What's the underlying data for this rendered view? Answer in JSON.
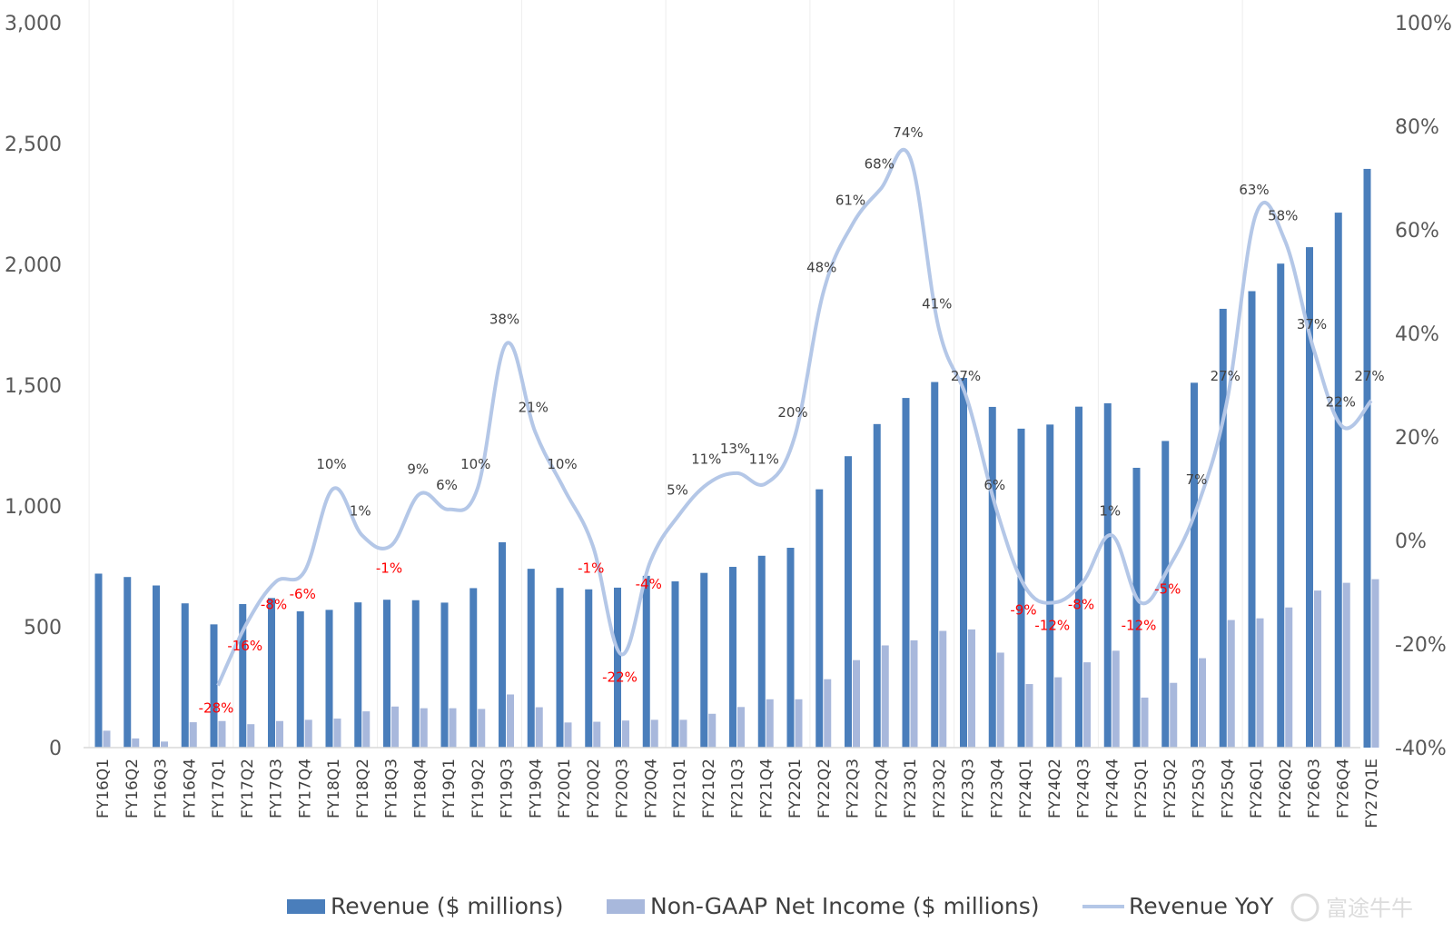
{
  "chart_data": {
    "type": "bar",
    "categories": [
      "FY16Q1",
      "FY16Q2",
      "FY16Q3",
      "FY16Q4",
      "FY17Q1",
      "FY17Q2",
      "FY17Q3",
      "FY17Q4",
      "FY18Q1",
      "FY18Q2",
      "FY18Q3",
      "FY18Q4",
      "FY19Q1",
      "FY19Q2",
      "FY19Q3",
      "FY19Q4",
      "FY20Q1",
      "FY20Q2",
      "FY20Q3",
      "FY20Q4",
      "FY21Q1",
      "FY21Q2",
      "FY21Q3",
      "FY21Q4",
      "FY22Q1",
      "FY22Q2",
      "FY22Q3",
      "FY22Q4",
      "FY23Q1",
      "FY23Q2",
      "FY23Q3",
      "FY23Q4",
      "FY24Q1",
      "FY24Q2",
      "FY24Q3",
      "FY24Q4",
      "FY25Q1",
      "FY25Q2",
      "FY25Q3",
      "FY25Q4",
      "FY26Q1",
      "FY26Q2",
      "FY26Q3",
      "FY26Q4",
      "FY27Q1E"
    ],
    "series": [
      {
        "name": "Revenue ($ millions)",
        "axis": "left",
        "kind": "bar",
        "color": "#4a7ebb",
        "values": [
          720,
          706,
          671,
          597,
          510,
          594,
          619,
          564,
          570,
          601,
          612,
          610,
          600,
          660,
          850,
          740,
          661,
          655,
          662,
          711,
          688,
          723,
          748,
          794,
          827,
          1069,
          1206,
          1339,
          1447,
          1513,
          1530,
          1410,
          1320,
          1337,
          1411,
          1425,
          1158,
          1269,
          1510,
          1816,
          1889,
          2003,
          2071,
          2214,
          2395
        ]
      },
      {
        "name": "Non-GAAP Net Income ($ millions)",
        "axis": "left",
        "kind": "bar",
        "color": "#a8b8dc",
        "values": [
          70,
          38,
          25,
          105,
          110,
          97,
          110,
          115,
          120,
          150,
          170,
          163,
          163,
          160,
          220,
          167,
          104,
          107,
          112,
          115,
          115,
          140,
          168,
          200,
          200,
          283,
          362,
          423,
          444,
          483,
          489,
          393,
          263,
          291,
          353,
          401,
          207,
          268,
          370,
          528,
          535,
          580,
          650,
          682,
          697
        ]
      },
      {
        "name": "Revenue YoY",
        "axis": "right",
        "kind": "line",
        "color": "#b4c7e7",
        "values": [
          null,
          null,
          null,
          null,
          -28,
          -16,
          -8,
          -6,
          10,
          1,
          -1,
          9,
          6,
          10,
          38,
          21,
          10,
          -1,
          -22,
          -4,
          5,
          11,
          13,
          11,
          20,
          48,
          61,
          68,
          74,
          41,
          27,
          6,
          -9,
          -12,
          -8,
          1,
          -12,
          -5,
          7,
          27,
          63,
          58,
          37,
          22,
          27
        ],
        "labels": [
          "",
          "",
          "",
          "",
          "-28%",
          "-16%",
          "-8%",
          "-6%",
          "10%",
          "1%",
          "-1%",
          "9%",
          "6%",
          "10%",
          "38%",
          "21%",
          "10%",
          "-1%",
          "-22%",
          "-4%",
          "5%",
          "11%",
          "13%",
          "11%",
          "20%",
          "48%",
          "61%",
          "68%",
          "74%",
          "41%",
          "27%",
          "6%",
          "-9%",
          "-12%",
          "-8%",
          "1%",
          "-12%",
          "-5%",
          "7%",
          "27%",
          "63%",
          "58%",
          "37%",
          "22%",
          "27%"
        ]
      }
    ],
    "y_left": {
      "min": 0,
      "max": 3000,
      "ticks": [
        "0",
        "500",
        "1,000",
        "1,500",
        "2,000",
        "2,500",
        "3,000"
      ]
    },
    "y_right": {
      "min": -40,
      "max": 100,
      "ticks": [
        "-40%",
        "-20%",
        "0%",
        "20%",
        "40%",
        "60%",
        "80%",
        "100%"
      ]
    },
    "grid": "vertical",
    "legend": "bottom",
    "negative_label_color": "#ff0000"
  },
  "watermark": "富途牛牛"
}
